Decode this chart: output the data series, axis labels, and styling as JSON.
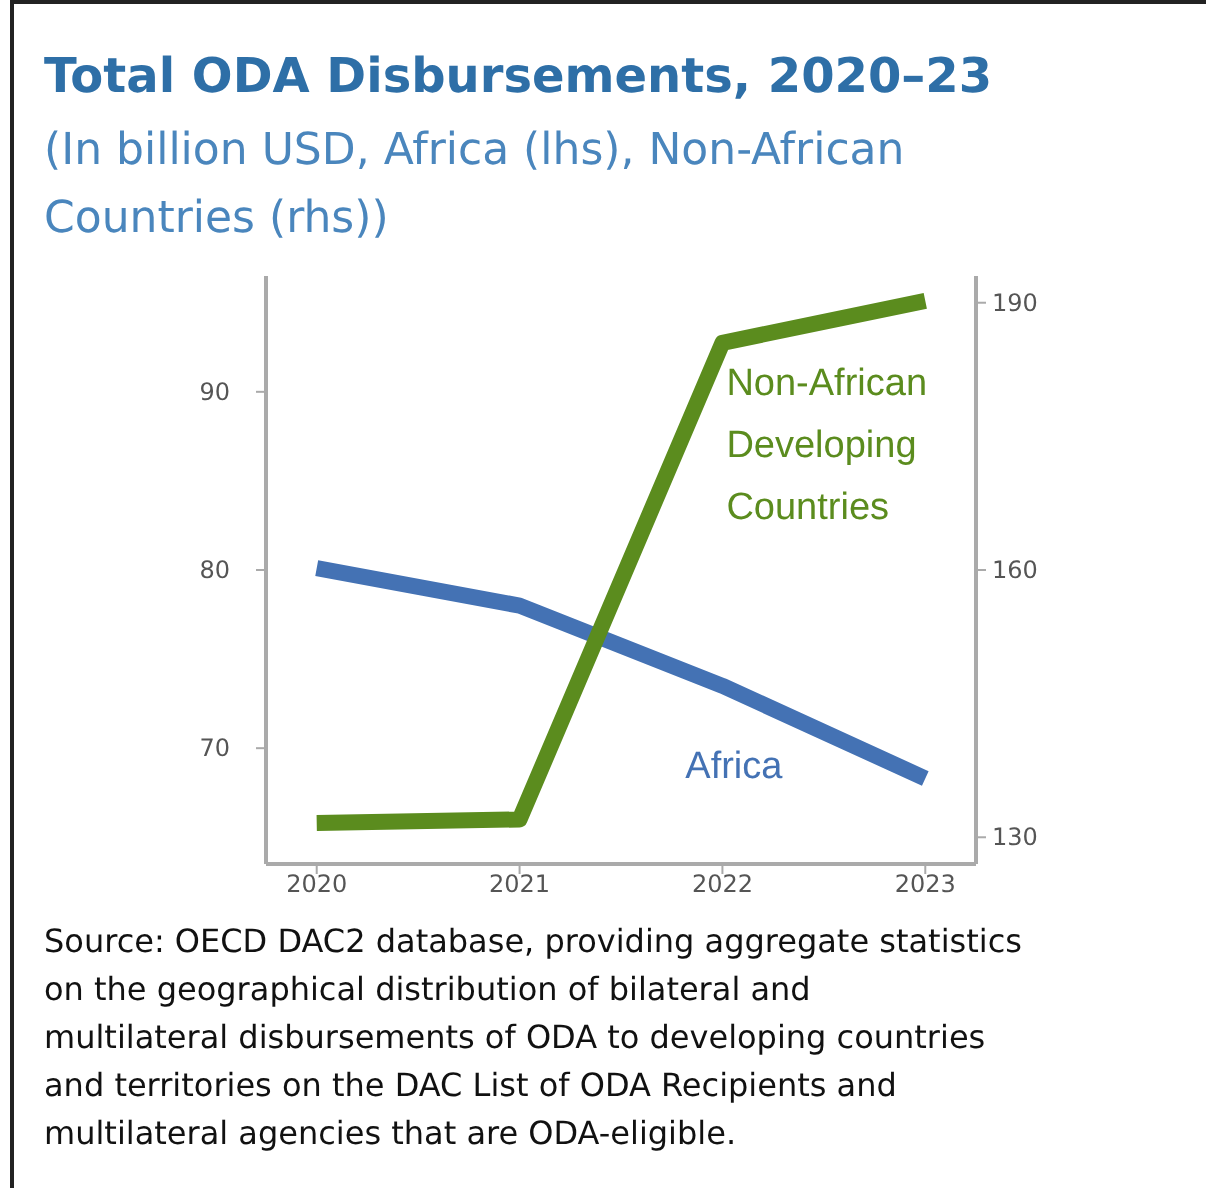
{
  "chart_data": {
    "type": "line",
    "title": "Total ODA Disbursements, 2020–23",
    "subtitle": "(In billion USD, Africa (lhs), Non-African Countries (rhs))",
    "categories": [
      "2020",
      "2021",
      "2022",
      "2023"
    ],
    "series": [
      {
        "name": "Africa",
        "color": "#4472b4",
        "values": [
          80.1,
          78.0,
          73.5,
          68.3
        ]
      },
      {
        "name": "Non-African Developing Countries",
        "color": "#5b8c1e",
        "axis": "y2",
        "values": [
          131.6,
          132,
          185.5,
          190.2
        ]
      }
    ],
    "ylim": [
      63.5,
      96.5
    ],
    "yticks": [
      70,
      80,
      90
    ],
    "y2lim": [
      127,
      193
    ],
    "y2ticks": [
      130,
      160,
      190
    ],
    "grid": false,
    "marker": "none",
    "line_style": "solid",
    "annotations": [
      "Source: OECD DAC2 database, providing aggregate statistics on the geographical distribution of bilateral and multilateral disbursements of ODA to developing countries and territories on the DAC List of ODA Recipients and multilateral agencies that are ODA-eligible."
    ]
  }
}
